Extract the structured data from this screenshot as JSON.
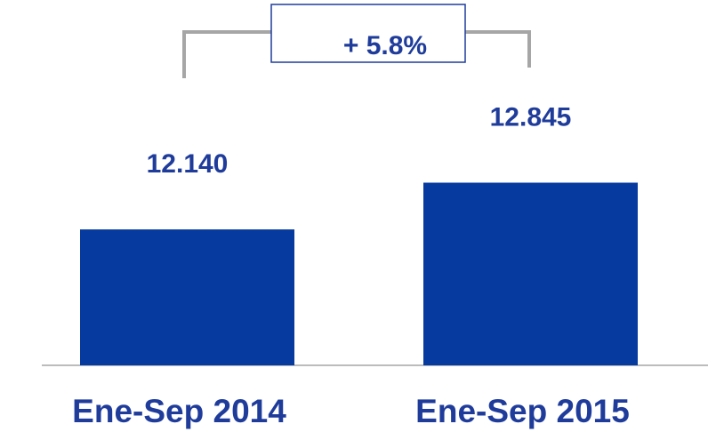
{
  "chart_data": {
    "type": "bar",
    "categories": [
      "Ene-Sep 2014",
      "Ene-Sep 2015"
    ],
    "values": [
      12140,
      12845
    ],
    "value_labels": [
      "12.140",
      "12.845"
    ],
    "color": "#063a9e",
    "ylim": [
      10090,
      15600
    ],
    "annotation": "+ 5.8%"
  }
}
